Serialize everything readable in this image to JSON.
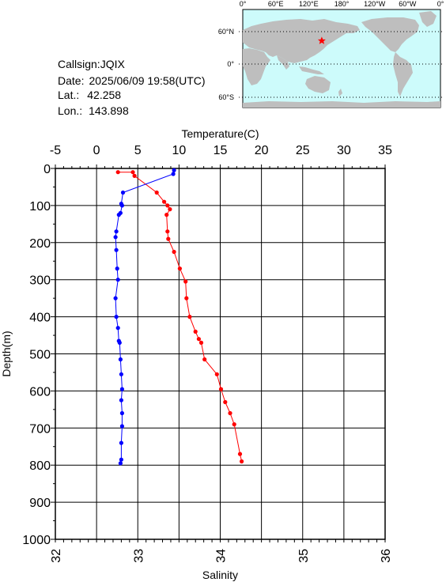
{
  "station": {
    "callsign_label": "Callsign:",
    "callsign": "JQIX",
    "date_label": "Date:",
    "date": "2025/06/09 19:58(UTC)",
    "lat_label": "Lat.:",
    "lat": "42.258",
    "lon_label": "Lon.:",
    "lon": "143.898"
  },
  "map": {
    "top_labels": [
      "0°",
      "60°E",
      "120°E",
      "180°",
      "120°W",
      "60°W",
      "0°"
    ],
    "left_labels": [
      "60°N",
      "0°",
      "60°S"
    ],
    "ocean_color": "#cdfbfb",
    "land_color": "#bebebe",
    "marker_color": "#ff0000",
    "marker_lon": 143.898,
    "marker_lat": 42.258
  },
  "chart_data": {
    "type": "line",
    "ylabel": "Depth(m)",
    "ylim": [
      1000,
      0
    ],
    "y_ticks": [
      0,
      100,
      200,
      300,
      400,
      500,
      600,
      700,
      800,
      900,
      1000
    ],
    "top_axis": {
      "label": "Temperature(C)",
      "range": [
        -5,
        35
      ],
      "ticks": [
        -5,
        0,
        5,
        10,
        15,
        20,
        25,
        30,
        35
      ],
      "tick_labels": [
        "-5",
        "0",
        "5",
        "10",
        "15",
        "20",
        "25",
        "30",
        "35"
      ]
    },
    "bottom_axis": {
      "label": "Salinity",
      "range": [
        32,
        36
      ],
      "ticks": [
        32,
        33,
        34,
        35,
        36
      ],
      "tick_labels": [
        "32",
        "33",
        "34",
        "35",
        "36"
      ]
    },
    "grid": true,
    "series": [
      {
        "axis": "temperature",
        "color": "#ff0000",
        "points": [
          [
            2.6,
            10
          ],
          [
            4.4,
            10
          ],
          [
            4.6,
            20
          ],
          [
            7.3,
            65
          ],
          [
            8.2,
            90
          ],
          [
            8.6,
            100
          ],
          [
            8.9,
            110
          ],
          [
            8.5,
            125
          ],
          [
            8.6,
            170
          ],
          [
            8.7,
            190
          ],
          [
            9.4,
            225
          ],
          [
            10.1,
            270
          ],
          [
            10.8,
            305
          ],
          [
            10.9,
            350
          ],
          [
            11.3,
            400
          ],
          [
            12.0,
            440
          ],
          [
            12.4,
            460
          ],
          [
            12.7,
            470
          ],
          [
            13.1,
            515
          ],
          [
            14.6,
            555
          ],
          [
            15.1,
            595
          ],
          [
            15.6,
            630
          ],
          [
            16.2,
            660
          ],
          [
            16.7,
            690
          ],
          [
            17.4,
            770
          ],
          [
            17.6,
            790
          ]
        ]
      },
      {
        "axis": "salinity",
        "color": "#0000ff",
        "points": [
          [
            33.44,
            5
          ],
          [
            33.43,
            15
          ],
          [
            32.82,
            65
          ],
          [
            32.8,
            95
          ],
          [
            32.81,
            100
          ],
          [
            32.79,
            120
          ],
          [
            32.77,
            125
          ],
          [
            32.74,
            170
          ],
          [
            32.73,
            185
          ],
          [
            32.74,
            220
          ],
          [
            32.75,
            270
          ],
          [
            32.76,
            300
          ],
          [
            32.73,
            350
          ],
          [
            32.74,
            400
          ],
          [
            32.76,
            430
          ],
          [
            32.77,
            465
          ],
          [
            32.78,
            470
          ],
          [
            32.79,
            515
          ],
          [
            32.8,
            555
          ],
          [
            32.81,
            595
          ],
          [
            32.8,
            625
          ],
          [
            32.81,
            660
          ],
          [
            32.81,
            695
          ],
          [
            32.8,
            740
          ],
          [
            32.8,
            785
          ],
          [
            32.79,
            795
          ]
        ]
      }
    ]
  }
}
